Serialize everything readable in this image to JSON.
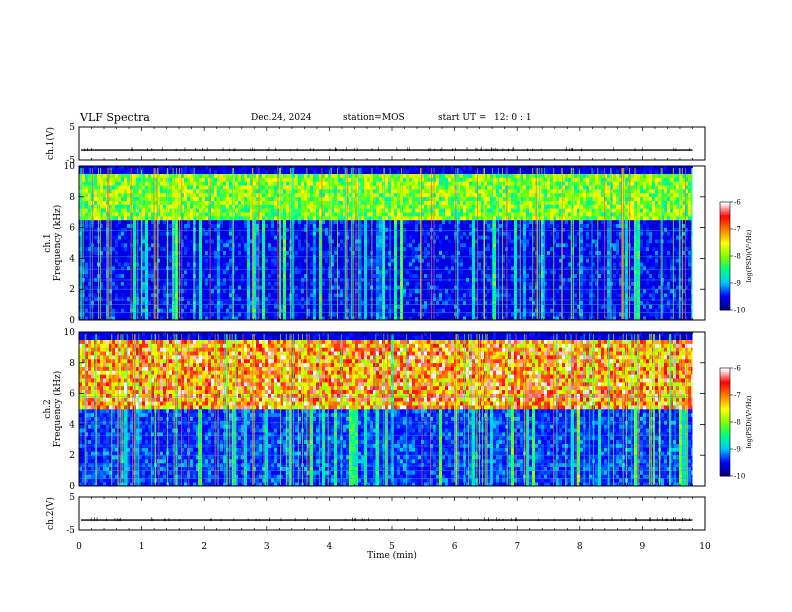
{
  "header": {
    "title": "VLF Spectra",
    "date": "Dec.24, 2024",
    "station": "station=MOS",
    "start_label": "start  UT  =",
    "start_time": "12: 0  : 1"
  },
  "chart_data": {
    "type": "heatmap",
    "x": {
      "label": "Time  (min)",
      "range": [
        0,
        10
      ],
      "ticks": [
        "0",
        "1",
        "2",
        "3",
        "4",
        "5",
        "6",
        "7",
        "8",
        "9",
        "10"
      ]
    },
    "panels": [
      {
        "name": "ch1-waveform",
        "kind": "waveform",
        "ylabel": "ch.1(V)",
        "ylim": [
          -5,
          5
        ],
        "yticks": [
          "5",
          "-5"
        ],
        "trace_level": -2
      },
      {
        "name": "ch1-spectrogram",
        "kind": "spectrogram",
        "ylabel_line1": "ch.1",
        "ylabel_line2": "Frequency (kHz)",
        "ylim": [
          0,
          10
        ],
        "yticks": [
          "0",
          "2",
          "4",
          "6",
          "8",
          "10"
        ],
        "band_khz": [
          6.5,
          9.5
        ],
        "band_intensity": 0.55,
        "background_intensity": 0.08
      },
      {
        "name": "ch2-spectrogram",
        "kind": "spectrogram",
        "ylabel_line1": "ch.2",
        "ylabel_line2": "Frequency (kHz)",
        "ylim": [
          0,
          10
        ],
        "yticks": [
          "0",
          "2",
          "4",
          "6",
          "8",
          "10"
        ],
        "band_khz": [
          5.0,
          9.5
        ],
        "band_intensity": 0.85,
        "background_intensity": 0.12
      },
      {
        "name": "ch2-waveform",
        "kind": "waveform",
        "ylabel": "ch.2(V)",
        "ylim": [
          -5,
          5
        ],
        "yticks": [
          "5",
          "-5"
        ],
        "trace_level": -2
      }
    ],
    "colorbar": {
      "label": "log(PSD)(V²/Hz)",
      "range": [
        -10,
        -6
      ],
      "ticks": [
        "-6",
        "-7",
        "-8",
        "-9",
        "-10"
      ],
      "colors": [
        "#000080",
        "#0000ff",
        "#00c8ff",
        "#00ff80",
        "#80ff00",
        "#ffff00",
        "#ff8000",
        "#ff0000",
        "#ffffff"
      ]
    }
  }
}
